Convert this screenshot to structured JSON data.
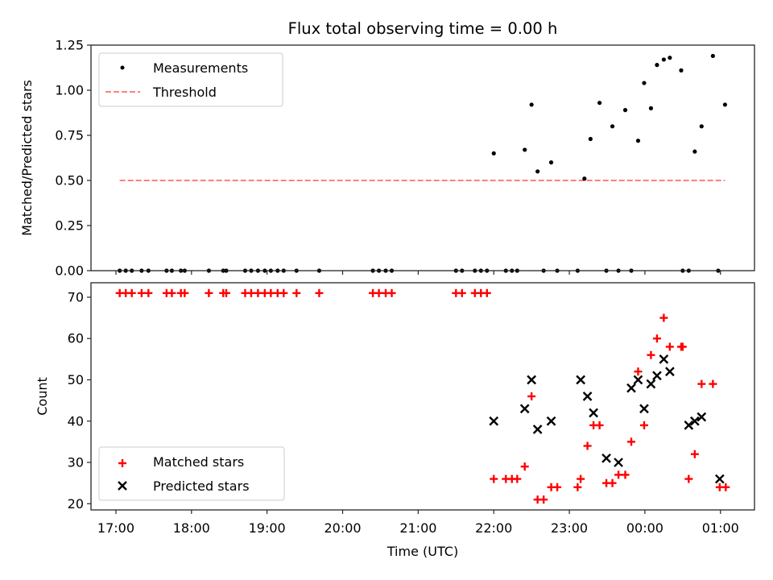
{
  "chart_data": [
    {
      "type": "scatter",
      "title": "Flux total observing time = 0.00 h",
      "xlabel": "",
      "ylabel": "Matched/Predicted stars",
      "x_unit": "hours since 17:00 UTC",
      "xlim": [
        -0.33,
        8.45
      ],
      "ylim": [
        0,
        1.25
      ],
      "yticks": [
        0,
        0.25,
        0.5,
        0.75,
        1.0,
        1.25
      ],
      "ytick_labels": [
        "0.00",
        "0.25",
        "0.50",
        "0.75",
        "1.00",
        "1.25"
      ],
      "xticks": [
        0,
        1,
        2,
        3,
        4,
        5,
        6,
        7,
        8
      ],
      "grid": false,
      "legend": {
        "position": "top-left",
        "entries": [
          "Measurements",
          "Threshold"
        ]
      },
      "series": [
        {
          "name": "Measurements",
          "marker": "dot",
          "color": "#000000",
          "x": [
            0.05,
            0.13,
            0.21,
            0.34,
            0.43,
            0.67,
            0.74,
            0.86,
            0.91,
            1.23,
            1.42,
            1.46,
            1.71,
            1.79,
            1.88,
            1.97,
            2.05,
            2.14,
            2.22,
            2.39,
            2.69,
            3.4,
            3.48,
            3.57,
            3.65,
            4.5,
            4.58,
            4.75,
            4.83,
            4.91,
            5.0,
            5.16,
            5.24,
            5.31,
            5.41,
            5.5,
            5.58,
            5.66,
            5.76,
            5.84,
            6.11,
            6.2,
            6.28,
            6.4,
            6.49,
            6.57,
            6.65,
            6.74,
            6.82,
            6.91,
            6.99,
            7.08,
            7.16,
            7.25,
            7.33,
            7.48,
            7.5,
            7.58,
            7.66,
            7.75,
            7.9,
            7.97,
            8.06
          ],
          "y": [
            0,
            0,
            0,
            0,
            0,
            0,
            0,
            0,
            0,
            0,
            0,
            0,
            0,
            0,
            0,
            0,
            0,
            0,
            0,
            0,
            0,
            0,
            0,
            0,
            0,
            0,
            0,
            0,
            0,
            0,
            0.65,
            0,
            0,
            0,
            0.67,
            0.92,
            0.55,
            0,
            0.6,
            0,
            0,
            0.51,
            0.73,
            0.93,
            0,
            0.8,
            0,
            0.89,
            0,
            0.72,
            1.04,
            0.9,
            1.14,
            1.17,
            1.18,
            1.11,
            0,
            0,
            0.66,
            0.8,
            1.19,
            0,
            0.92
          ]
        },
        {
          "name": "Threshold",
          "style": "dashed",
          "color": "#ff7f7f",
          "x": [
            0.05,
            8.06
          ],
          "y": [
            0.5,
            0.5
          ]
        }
      ]
    },
    {
      "type": "scatter",
      "title": "",
      "xlabel": "Time (UTC)",
      "ylabel": "Count",
      "x_unit": "hours since 17:00 UTC",
      "xlim": [
        -0.33,
        8.45
      ],
      "ylim": [
        18.5,
        73.5
      ],
      "yticks": [
        20,
        30,
        40,
        50,
        60,
        70
      ],
      "ytick_labels": [
        "20",
        "30",
        "40",
        "50",
        "60",
        "70"
      ],
      "xticks": [
        0,
        1,
        2,
        3,
        4,
        5,
        6,
        7,
        8
      ],
      "xtick_labels": [
        "17:00",
        "18:00",
        "19:00",
        "20:00",
        "21:00",
        "22:00",
        "23:00",
        "00:00",
        "01:00"
      ],
      "grid": false,
      "legend": {
        "position": "bottom-left",
        "entries": [
          "Matched stars",
          "Predicted stars"
        ]
      },
      "series": [
        {
          "name": "Matched stars",
          "marker": "plus",
          "color": "#ff0000",
          "x": [
            0.05,
            0.13,
            0.21,
            0.34,
            0.43,
            0.67,
            0.74,
            0.86,
            0.91,
            1.23,
            1.42,
            1.46,
            1.71,
            1.79,
            1.88,
            1.97,
            2.05,
            2.14,
            2.22,
            2.39,
            2.69,
            3.4,
            3.48,
            3.57,
            3.65,
            4.5,
            4.58,
            4.75,
            4.83,
            4.91,
            5.0,
            5.16,
            5.24,
            5.31,
            5.41,
            5.5,
            5.58,
            5.66,
            5.76,
            5.84,
            6.11,
            6.15,
            6.24,
            6.32,
            6.4,
            6.49,
            6.57,
            6.65,
            6.74,
            6.82,
            6.91,
            6.99,
            7.08,
            7.16,
            7.25,
            7.33,
            7.48,
            7.5,
            7.58,
            7.66,
            7.75,
            7.9,
            7.99,
            8.07
          ],
          "y": [
            71,
            71,
            71,
            71,
            71,
            71,
            71,
            71,
            71,
            71,
            71,
            71,
            71,
            71,
            71,
            71,
            71,
            71,
            71,
            71,
            71,
            71,
            71,
            71,
            71,
            71,
            71,
            71,
            71,
            71,
            26,
            26,
            26,
            26,
            29,
            46,
            21,
            21,
            24,
            24,
            24,
            26,
            34,
            39,
            39,
            25,
            25,
            27,
            27,
            35,
            52,
            39,
            56,
            60,
            65,
            58,
            58,
            58,
            26,
            32,
            49,
            49,
            24,
            24
          ]
        },
        {
          "name": "Predicted stars",
          "marker": "x",
          "color": "#000000",
          "x": [
            5.0,
            5.41,
            5.5,
            5.58,
            5.76,
            6.15,
            6.24,
            6.32,
            6.49,
            6.65,
            6.82,
            6.91,
            6.99,
            7.08,
            7.16,
            7.25,
            7.33,
            7.58,
            7.66,
            7.75,
            7.99
          ],
          "y": [
            40,
            43,
            50,
            38,
            40,
            50,
            46,
            42,
            31,
            30,
            48,
            50,
            43,
            49,
            51,
            55,
            52,
            39,
            40,
            41,
            26
          ]
        }
      ]
    }
  ]
}
